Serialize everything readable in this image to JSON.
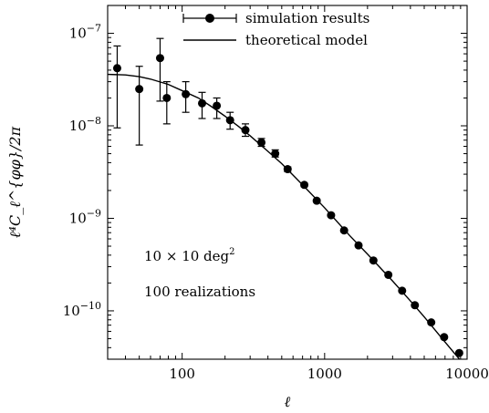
{
  "chart_data": {
    "type": "scatter",
    "title": "",
    "xlabel": "ℓ",
    "ylabel": "ℓ⁴C_ℓ^{φφ}/2π",
    "xscale": "log",
    "yscale": "log",
    "xlim": [
      30,
      10000
    ],
    "ylim": [
      3e-11,
      2e-07
    ],
    "x_tick_labels": [
      {
        "value": 100,
        "label": "100"
      },
      {
        "value": 1000,
        "label": "1000"
      },
      {
        "value": 10000,
        "label": "10000"
      }
    ],
    "y_tick_labels": [
      {
        "value": 1e-07,
        "mant": "10",
        "exp": "−7"
      },
      {
        "value": 1e-08,
        "mant": "10",
        "exp": "−8"
      },
      {
        "value": 1e-09,
        "mant": "10",
        "exp": "−9"
      },
      {
        "value": 1e-10,
        "mant": "10",
        "exp": "−10"
      }
    ],
    "grid": false,
    "legend_position": "top-center",
    "legend": [
      {
        "label": "simulation results",
        "style": "errorbar-marker"
      },
      {
        "label": "theoretical model",
        "style": "line"
      }
    ],
    "annotations": [
      {
        "text": "10 × 10 deg",
        "sup": "2"
      },
      {
        "text": "100 realizations"
      }
    ],
    "series": [
      {
        "name": "simulation results",
        "type": "scatter",
        "x": [
          35,
          50,
          70,
          78,
          106,
          138,
          175,
          217,
          278,
          360,
          450,
          550,
          720,
          880,
          1110,
          1370,
          1730,
          2200,
          2800,
          3500,
          4300,
          5600,
          6900,
          8800
        ],
        "y": [
          4.2e-08,
          2.5e-08,
          5.4e-08,
          2e-08,
          2.2e-08,
          1.75e-08,
          1.65e-08,
          1.15e-08,
          9e-09,
          6.6e-09,
          5e-09,
          3.4e-09,
          2.3e-09,
          1.55e-09,
          1.08e-09,
          7.4e-10,
          5.1e-10,
          3.5e-10,
          2.45e-10,
          1.65e-10,
          1.15e-10,
          7.5e-11,
          5.2e-11,
          3.5e-11
        ],
        "y_low": [
          9.5e-09,
          6.2e-09,
          1.85e-08,
          1.05e-08,
          1.4e-08,
          1.2e-08,
          1.2e-08,
          9.2e-09,
          7.7e-09,
          6e-09,
          4.6e-09,
          3.2e-09,
          2.2e-09,
          1.5e-09,
          1.05e-09,
          7.2e-10,
          5e-10,
          3.45e-10,
          2.4e-10,
          1.62e-10,
          1.13e-10,
          7.4e-11,
          5.15e-11,
          3.45e-11
        ],
        "y_high": [
          7.3e-08,
          4.4e-08,
          8.8e-08,
          3e-08,
          3e-08,
          2.3e-08,
          2e-08,
          1.4e-08,
          1.05e-08,
          7.3e-09,
          5.5e-09,
          3.6e-09,
          2.4e-09,
          1.6e-09,
          1.11e-09,
          7.6e-10,
          5.2e-10,
          3.55e-10,
          2.5e-10,
          1.68e-10,
          1.17e-10,
          7.6e-11,
          5.25e-11,
          3.55e-11
        ],
        "color": "#000000"
      },
      {
        "name": "theoretical model",
        "type": "line",
        "x": [
          30,
          40,
          50,
          60,
          80,
          100,
          130,
          160,
          200,
          250,
          300,
          400,
          500,
          700,
          1000,
          1500,
          2000,
          3000,
          4000,
          5000,
          7000,
          9000,
          10000
        ],
        "y": [
          3.6e-08,
          3.55e-08,
          3.4e-08,
          3.2e-08,
          2.8e-08,
          2.4e-08,
          2e-08,
          1.62e-08,
          1.27e-08,
          9.8e-09,
          7.8e-09,
          5.3e-09,
          3.9e-09,
          2.3e-09,
          1.3e-09,
          6.5e-10,
          4.1e-10,
          2.1e-10,
          1.28e-10,
          8.6e-11,
          4.6e-11,
          2.9e-11,
          2.4e-11
        ],
        "color": "#000000"
      }
    ]
  }
}
